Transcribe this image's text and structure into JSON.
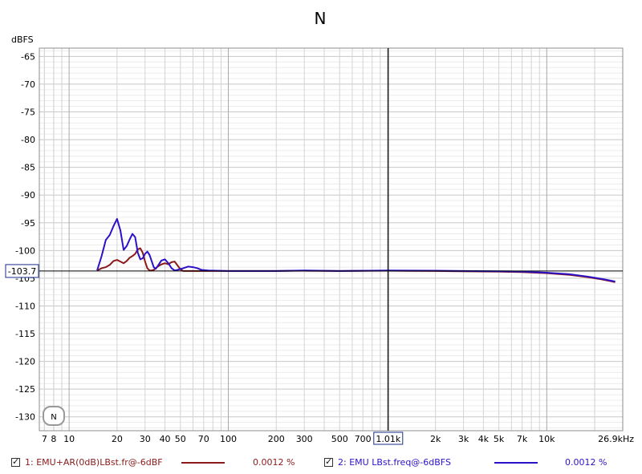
{
  "chart_data": {
    "type": "line",
    "title": "N",
    "ylabel": "dBFS",
    "xunit": "kHz",
    "xscale": "log",
    "xlim": [
      6.5,
      30000
    ],
    "ylim": [
      -132.5,
      -63.5
    ],
    "y_ticks": [
      -65,
      -70,
      -75,
      -80,
      -85,
      -90,
      -95,
      -100,
      -105,
      -110,
      -115,
      -120,
      -125,
      -130
    ],
    "y_tick_labels": [
      "-65",
      "-70",
      "-75",
      "-80",
      "-85",
      "-90",
      "-95",
      "-100",
      "-105",
      "-110",
      "-115",
      "-120",
      "-125",
      "-130"
    ],
    "x_ticks": [
      7,
      8,
      10,
      20,
      30,
      40,
      50,
      70,
      100,
      200,
      300,
      500,
      700,
      2000,
      3000,
      4000,
      5000,
      7000,
      10000,
      26900
    ],
    "x_tick_labels": [
      "7",
      "8",
      "10",
      "20",
      "30",
      "40",
      "50",
      "70",
      "100",
      "200",
      "300",
      "500",
      "700",
      "2k",
      "3k",
      "4k",
      "5k",
      "7k",
      "10k",
      "26.9kHz"
    ],
    "cursor": {
      "x": 1010,
      "y": -103.7,
      "x_label": "1.01k",
      "y_label": "-103.7"
    },
    "badge": "N",
    "grid": true,
    "legend_position": "bottom",
    "series": [
      {
        "name": "1: EMU+AR(0dB)LBst.fr@-6dBF",
        "color": "#8b1a1a",
        "value_label": "0.0012 %",
        "points": [
          [
            15,
            -103.6
          ],
          [
            16,
            -103.2
          ],
          [
            17,
            -103.0
          ],
          [
            18,
            -102.6
          ],
          [
            19,
            -101.9
          ],
          [
            20,
            -101.7
          ],
          [
            21,
            -102.0
          ],
          [
            22,
            -102.3
          ],
          [
            23,
            -101.9
          ],
          [
            24,
            -101.3
          ],
          [
            25,
            -101.0
          ],
          [
            26,
            -100.6
          ],
          [
            27,
            -99.8
          ],
          [
            28,
            -99.6
          ],
          [
            29,
            -100.4
          ],
          [
            30,
            -102.0
          ],
          [
            31,
            -103.2
          ],
          [
            32,
            -103.6
          ],
          [
            33,
            -103.6
          ],
          [
            34,
            -103.5
          ],
          [
            36,
            -102.9
          ],
          [
            38,
            -102.5
          ],
          [
            40,
            -102.3
          ],
          [
            42,
            -102.5
          ],
          [
            44,
            -102.1
          ],
          [
            46,
            -102.0
          ],
          [
            48,
            -102.7
          ],
          [
            50,
            -103.4
          ],
          [
            52,
            -103.7
          ],
          [
            56,
            -103.7
          ],
          [
            62,
            -103.7
          ],
          [
            70,
            -103.7
          ],
          [
            100,
            -103.7
          ],
          [
            200,
            -103.7
          ],
          [
            300,
            -103.65
          ],
          [
            500,
            -103.7
          ],
          [
            1000,
            -103.65
          ],
          [
            2000,
            -103.7
          ],
          [
            3000,
            -103.75
          ],
          [
            5000,
            -103.8
          ],
          [
            7000,
            -103.9
          ],
          [
            10000,
            -104.1
          ],
          [
            14000,
            -104.4
          ],
          [
            18000,
            -104.8
          ],
          [
            22000,
            -105.2
          ],
          [
            26900,
            -105.7
          ]
        ]
      },
      {
        "name": "2: EMU LBst.freq@-6dBFS",
        "color": "#2b12c8",
        "value_label": "0.0012 %",
        "points": [
          [
            15,
            -103.6
          ],
          [
            16,
            -101.0
          ],
          [
            17,
            -98.1
          ],
          [
            18,
            -97.2
          ],
          [
            19,
            -95.6
          ],
          [
            20,
            -94.3
          ],
          [
            21,
            -96.4
          ],
          [
            22,
            -99.9
          ],
          [
            23,
            -99.2
          ],
          [
            24,
            -98.0
          ],
          [
            25,
            -97.0
          ],
          [
            26,
            -97.6
          ],
          [
            27,
            -100.4
          ],
          [
            28,
            -101.6
          ],
          [
            29,
            -101.4
          ],
          [
            30,
            -100.6
          ],
          [
            31,
            -100.2
          ],
          [
            32,
            -100.8
          ],
          [
            34,
            -103.0
          ],
          [
            35,
            -103.3
          ],
          [
            36,
            -102.8
          ],
          [
            38,
            -101.8
          ],
          [
            40,
            -101.6
          ],
          [
            42,
            -102.3
          ],
          [
            44,
            -103.2
          ],
          [
            46,
            -103.6
          ],
          [
            48,
            -103.5
          ],
          [
            52,
            -103.2
          ],
          [
            56,
            -102.9
          ],
          [
            60,
            -103.0
          ],
          [
            64,
            -103.2
          ],
          [
            68,
            -103.5
          ],
          [
            75,
            -103.6
          ],
          [
            100,
            -103.7
          ],
          [
            200,
            -103.7
          ],
          [
            300,
            -103.6
          ],
          [
            500,
            -103.7
          ],
          [
            1000,
            -103.6
          ],
          [
            2000,
            -103.65
          ],
          [
            3000,
            -103.7
          ],
          [
            5000,
            -103.75
          ],
          [
            7000,
            -103.8
          ],
          [
            10000,
            -104.0
          ],
          [
            14000,
            -104.3
          ],
          [
            18000,
            -104.7
          ],
          [
            22000,
            -105.1
          ],
          [
            26900,
            -105.6
          ]
        ]
      }
    ]
  },
  "legend": [
    {
      "label": "1: EMU+AR(0dB)LBst.fr@-6dBF",
      "value": "0.0012 %",
      "color": "#8b1a1a"
    },
    {
      "label": "2: EMU LBst.freq@-6dBFS",
      "value": "0.0012 %",
      "color": "#2b12c8"
    }
  ]
}
